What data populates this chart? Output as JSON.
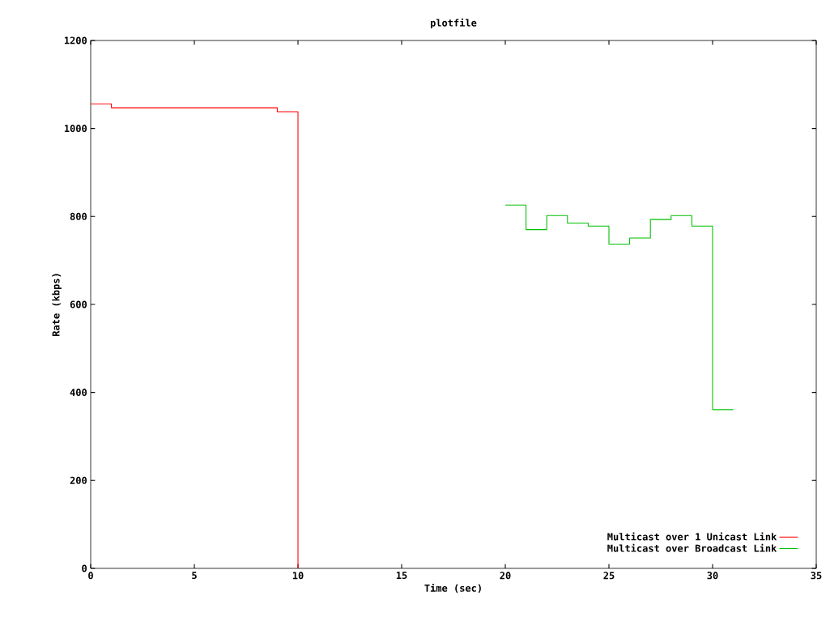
{
  "chart_data": {
    "type": "step",
    "title": "plotfile",
    "xlabel": "Time (sec)",
    "ylabel": "Rate (kbps)",
    "xlim": [
      0,
      35
    ],
    "ylim": [
      0,
      1200
    ],
    "xticks": [
      0,
      5,
      10,
      15,
      20,
      25,
      30,
      35
    ],
    "yticks": [
      0,
      200,
      400,
      600,
      800,
      1000,
      1200
    ],
    "grid": false,
    "legend": "bottom right",
    "series": [
      {
        "name": "Multicast over 1 Unicast Link",
        "color": "#ff0000",
        "x": [
          0,
          1,
          9,
          10
        ],
        "values": [
          1056,
          1047,
          1038,
          0
        ]
      },
      {
        "name": "Multicast over Broadcast Link",
        "color": "#00c000",
        "x": [
          20,
          21,
          22,
          23,
          24,
          25,
          26,
          27,
          28,
          29,
          30,
          31
        ],
        "values": [
          826,
          770,
          802,
          785,
          778,
          737,
          751,
          793,
          802,
          778,
          361,
          361
        ]
      }
    ]
  }
}
